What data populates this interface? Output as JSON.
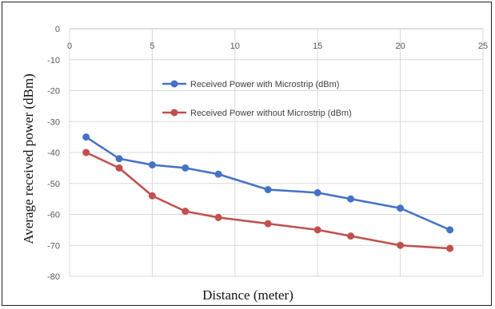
{
  "chart_data": {
    "type": "line",
    "xlabel": "Distance (meter)",
    "ylabel": "Average received power (dBm)",
    "xlim": [
      0,
      25
    ],
    "ylim": [
      -80,
      0
    ],
    "x_ticks": [
      "0",
      "5",
      "10",
      "15",
      "20",
      "25"
    ],
    "y_ticks": [
      "0",
      "-10",
      "-20",
      "-30",
      "-40",
      "-50",
      "-60",
      "-70",
      "-80"
    ],
    "x_axis_position": "top",
    "grid": true,
    "legend_position": "inside-top-center",
    "x": [
      1,
      3,
      5,
      7,
      9,
      12,
      15,
      17,
      20,
      23
    ],
    "series": [
      {
        "name": "Received Power with Microstrip (dBm)",
        "color": "#4472c4",
        "values": [
          -35,
          -42,
          -44,
          -45,
          -47,
          -52,
          -53,
          -55,
          -58,
          -65
        ]
      },
      {
        "name": "Received Power without Microstrip (dBm)",
        "color": "#c0504d",
        "values": [
          -40,
          -45,
          -54,
          -59,
          -61,
          -63,
          -65,
          -67,
          -70,
          -71
        ]
      }
    ]
  }
}
